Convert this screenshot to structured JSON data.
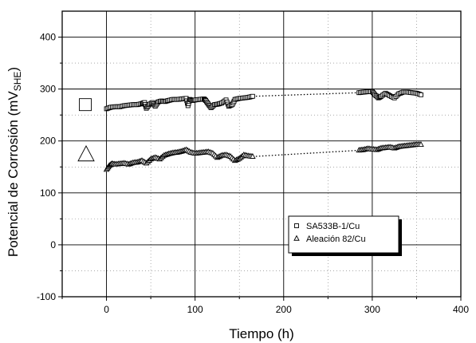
{
  "chart_data": {
    "type": "scatter",
    "title": "",
    "xlabel": "Tiempo (h)",
    "ylabel": "Potencial de Corrosión (mV",
    "ylabel_sub": "SHE",
    "ylabel_close": ")",
    "xlim": [
      -50,
      400
    ],
    "ylim": [
      -100,
      450
    ],
    "xticks": [
      0,
      100,
      200,
      300,
      400
    ],
    "yticks": [
      -100,
      0,
      100,
      200,
      300,
      400
    ],
    "xtick_labels": [
      "0",
      "100",
      "200",
      "300",
      "400"
    ],
    "ytick_labels": [
      "-100",
      "0",
      "100",
      "200",
      "300",
      "400"
    ],
    "grid": true,
    "legend_position": "lower-right",
    "series": [
      {
        "name": "SA533B-1/Cu",
        "marker": "square",
        "x": [
          0,
          5,
          10,
          15,
          20,
          25,
          30,
          35,
          40,
          43,
          45,
          48,
          52,
          55,
          58,
          62,
          66,
          70,
          75,
          80,
          85,
          90,
          92,
          94,
          97,
          100,
          105,
          110,
          112,
          115,
          118,
          122,
          126,
          130,
          135,
          138,
          142,
          145,
          150,
          155,
          160,
          165,
          285,
          290,
          295,
          300,
          303,
          307,
          310,
          315,
          320,
          325,
          330,
          335,
          340,
          345,
          350,
          355
        ],
        "y": [
          262,
          265,
          266,
          266,
          268,
          269,
          270,
          270,
          272,
          274,
          263,
          270,
          274,
          267,
          275,
          277,
          276,
          278,
          280,
          280,
          281,
          282,
          268,
          280,
          278,
          279,
          280,
          281,
          278,
          271,
          264,
          270,
          271,
          273,
          279,
          267,
          270,
          280,
          282,
          283,
          284,
          286,
          293,
          294,
          295,
          295,
          289,
          283,
          286,
          292,
          287,
          283,
          291,
          294,
          294,
          293,
          292,
          289
        ]
      },
      {
        "name": "Aleación 82/Cu",
        "marker": "triangle",
        "x": [
          0,
          3,
          6,
          10,
          15,
          20,
          25,
          30,
          35,
          40,
          45,
          50,
          55,
          60,
          65,
          70,
          75,
          80,
          85,
          90,
          95,
          100,
          105,
          110,
          115,
          120,
          125,
          130,
          135,
          140,
          145,
          150,
          155,
          160,
          165,
          285,
          290,
          295,
          300,
          305,
          310,
          315,
          320,
          325,
          330,
          335,
          340,
          345,
          350,
          355
        ],
        "y": [
          145,
          152,
          156,
          155,
          156,
          157,
          155,
          158,
          159,
          162,
          157,
          165,
          168,
          165,
          172,
          175,
          177,
          178,
          180,
          183,
          178,
          176,
          177,
          178,
          179,
          176,
          168,
          172,
          173,
          170,
          162,
          166,
          173,
          171,
          170,
          182,
          183,
          185,
          184,
          183,
          186,
          187,
          188,
          186,
          189,
          190,
          191,
          192,
          193,
          193
        ]
      }
    ],
    "dotted_links": [
      {
        "series": "SA533B-1/Cu",
        "from": [
          165,
          286
        ],
        "to": [
          285,
          293
        ]
      },
      {
        "series": "Aleación 82/Cu",
        "from": [
          165,
          170
        ],
        "to": [
          285,
          182
        ]
      }
    ],
    "side_markers": [
      {
        "shape": "square",
        "y": 270
      },
      {
        "shape": "triangle",
        "y": 170
      }
    ]
  }
}
